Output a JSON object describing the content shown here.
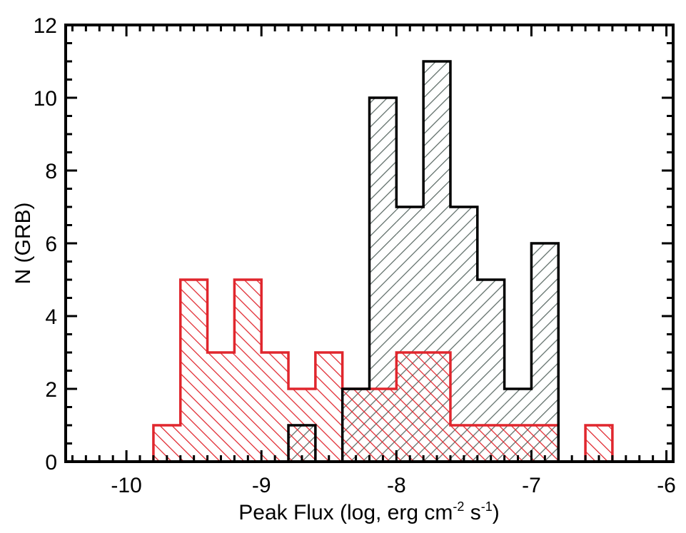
{
  "chart_data": {
    "type": "bar",
    "xlabel": "Peak Flux (log, erg cm",
    "xlabel_sup1": "-2",
    "xlabel_mid": " s",
    "xlabel_sup2": "-1",
    "xlabel_end": ")",
    "ylabel": "N (GRB)",
    "xlim": [
      -10.45,
      -5.95
    ],
    "ylim": [
      0,
      12
    ],
    "x_ticks": [
      "-10",
      "-9",
      "-8",
      "-7",
      "-6"
    ],
    "x_tick_values": [
      -10,
      -9,
      -8,
      -7,
      -6
    ],
    "y_ticks": [
      "0",
      "2",
      "4",
      "6",
      "8",
      "10",
      "12"
    ],
    "y_tick_values": [
      0,
      2,
      4,
      6,
      8,
      10,
      12
    ],
    "grid": false,
    "bin_edges": [
      -9.8,
      -9.6,
      -9.4,
      -9.2,
      -9.0,
      -8.8,
      -8.6,
      -8.4,
      -8.2,
      -8.0,
      -7.8,
      -7.6,
      -7.4,
      -7.2,
      -7.0,
      -6.8,
      -6.6,
      -6.4
    ],
    "series": [
      {
        "color": "#e0262d",
        "hatch": "backslash",
        "values": [
          1,
          5,
          3,
          5,
          3,
          2,
          3,
          2,
          2,
          3,
          3,
          1,
          1,
          1,
          1,
          0,
          1
        ]
      },
      {
        "color": "#000000",
        "hatch": "slash",
        "hatch_color": "#5c6b66",
        "values": [
          0,
          0,
          0,
          0,
          0,
          1,
          0,
          2,
          10,
          7,
          11,
          7,
          5,
          2,
          6,
          0,
          0
        ]
      }
    ]
  }
}
